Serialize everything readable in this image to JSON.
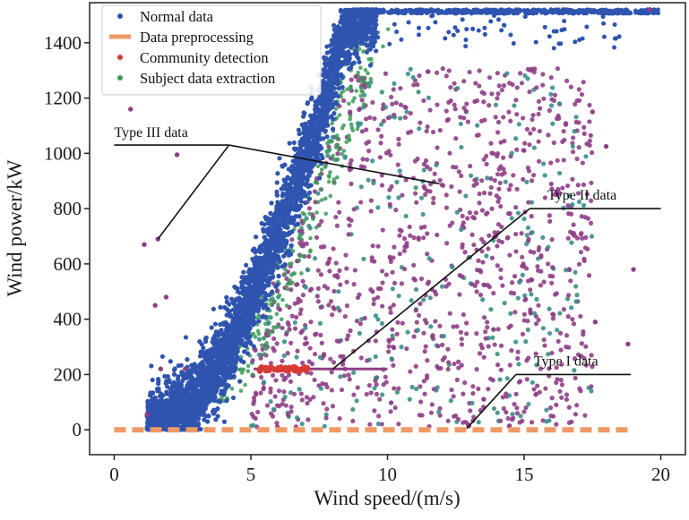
{
  "chart_data": {
    "type": "scatter",
    "xlabel": "Wind speed/(m/s)",
    "ylabel": "Wind power/kW",
    "xlim": [
      -0.9,
      20.9
    ],
    "ylim": [
      -90,
      1545
    ],
    "xticks": [
      0,
      5,
      10,
      15,
      20
    ],
    "yticks": [
      0,
      200,
      400,
      600,
      800,
      1000,
      1200,
      1400
    ],
    "grid": false,
    "legend_position": "top-left",
    "legend": [
      {
        "label": "Normal data",
        "kind": "point",
        "color": "#2f54b0"
      },
      {
        "label": "Data preprocessing",
        "kind": "dash",
        "color": "#ef9a66"
      },
      {
        "label": "Community detection",
        "kind": "point",
        "color": "#d93a34"
      },
      {
        "label": "Subject data extraction",
        "kind": "point",
        "color": "#3c9a5a"
      }
    ],
    "series": [
      {
        "name": "Normal data",
        "color": "#2f54b0",
        "points_sample": [
          [
            1.3,
            0
          ],
          [
            2.0,
            40
          ],
          [
            3.0,
            110
          ],
          [
            4.0,
            260
          ],
          [
            5.0,
            470
          ],
          [
            6.0,
            720
          ],
          [
            7.0,
            980
          ],
          [
            7.5,
            1120
          ],
          [
            8.0,
            1300
          ],
          [
            8.5,
            1440
          ],
          [
            9.0,
            1510
          ],
          [
            10.0,
            1520
          ],
          [
            12.0,
            1520
          ],
          [
            15.0,
            1520
          ],
          [
            18.0,
            1520
          ],
          [
            19.9,
            1520
          ]
        ]
      },
      {
        "name": "Data preprocessing",
        "color": "#ef9a66",
        "line": [
          [
            0,
            0
          ],
          [
            19,
            0
          ]
        ]
      },
      {
        "name": "Community detection",
        "color": "#d93a34",
        "line": [
          [
            5.1,
            220
          ],
          [
            10.0,
            220
          ]
        ]
      },
      {
        "name": "Subject data extraction",
        "color": "#3c9a5a",
        "points_sample": [
          [
            6.0,
            380
          ],
          [
            7.0,
            520
          ],
          [
            8.0,
            820
          ],
          [
            9.0,
            1050
          ],
          [
            10.0,
            1240
          ],
          [
            11.0,
            1180
          ],
          [
            12.0,
            640
          ],
          [
            13.0,
            300
          ],
          [
            8.5,
            110
          ],
          [
            5.5,
            120
          ]
        ]
      }
    ],
    "outliers_sample": [
      [
        0.6,
        1160
      ],
      [
        2.3,
        995
      ],
      [
        1.1,
        670
      ],
      [
        1.6,
        690
      ],
      [
        1.5,
        450
      ],
      [
        1.9,
        480
      ],
      [
        1.7,
        220
      ],
      [
        2.6,
        220
      ],
      [
        1.2,
        55
      ],
      [
        17.5,
        1150
      ],
      [
        18.0,
        1025
      ],
      [
        19.0,
        580
      ],
      [
        18.8,
        310
      ],
      [
        17.6,
        390
      ],
      [
        19.6,
        1520
      ]
    ],
    "annotations": [
      {
        "text": "Type  III data",
        "label_at": [
          0,
          1030
        ],
        "pointers": [
          [
            4.2,
            1030
          ],
          [
            11.9,
            890
          ],
          [
            1.6,
            690
          ]
        ]
      },
      {
        "text": "Type  II data",
        "label_at": [
          15.2,
          800
        ],
        "pointers": [
          [
            15.2,
            800
          ],
          [
            8.0,
            220
          ]
        ]
      },
      {
        "text": "Type  I data",
        "label_at": [
          14.7,
          200
        ],
        "pointers": [
          [
            14.7,
            200
          ],
          [
            12.9,
            5
          ]
        ]
      }
    ]
  }
}
